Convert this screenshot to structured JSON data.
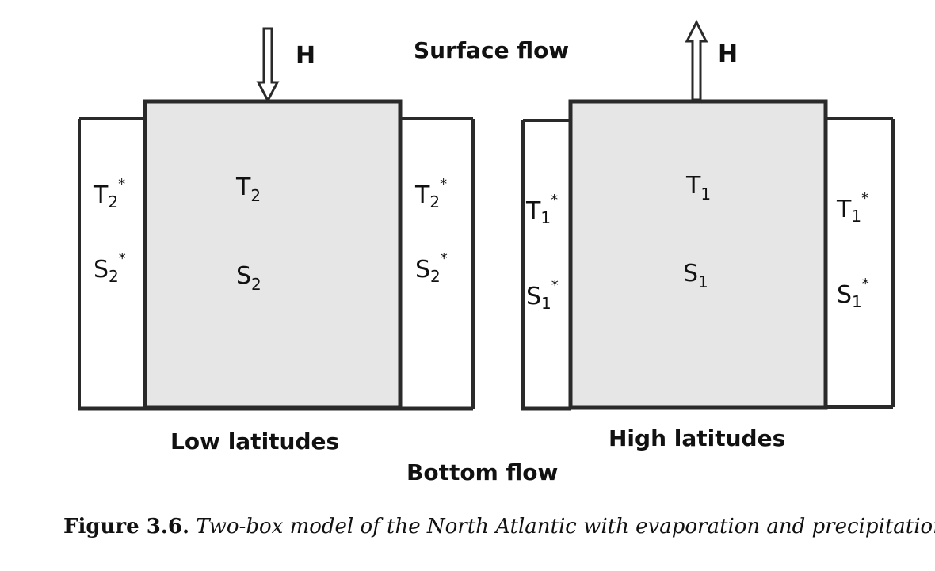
{
  "labels": {
    "surface_flow": "Surface flow",
    "bottom_flow": "Bottom flow",
    "low_latitudes": "Low latitudes",
    "high_latitudes": "High latitudes",
    "heat_in": "H",
    "heat_out": "H"
  },
  "low_box": {
    "temperature": "T",
    "temperature_sub": "2",
    "salinity": "S",
    "salinity_sub": "2"
  },
  "high_box": {
    "temperature": "T",
    "temperature_sub": "1",
    "salinity": "S",
    "salinity_sub": "1"
  },
  "low_outer": {
    "temperature": "T",
    "temperature_sub": "2",
    "temperature_sup": "*",
    "salinity": "S",
    "salinity_sub": "2",
    "salinity_sup": "*"
  },
  "high_outer": {
    "temperature": "T",
    "temperature_sub": "1",
    "temperature_sup": "*",
    "salinity": "S",
    "salinity_sub": "1",
    "salinity_sup": "*"
  },
  "caption": {
    "figure_label": "Figure 3.6.",
    "text": "Two-box model of the North Atlantic with evaporation and precipitation."
  },
  "colors": {
    "box_fill": "#e6e6e6",
    "line": "#2a2a2a"
  }
}
